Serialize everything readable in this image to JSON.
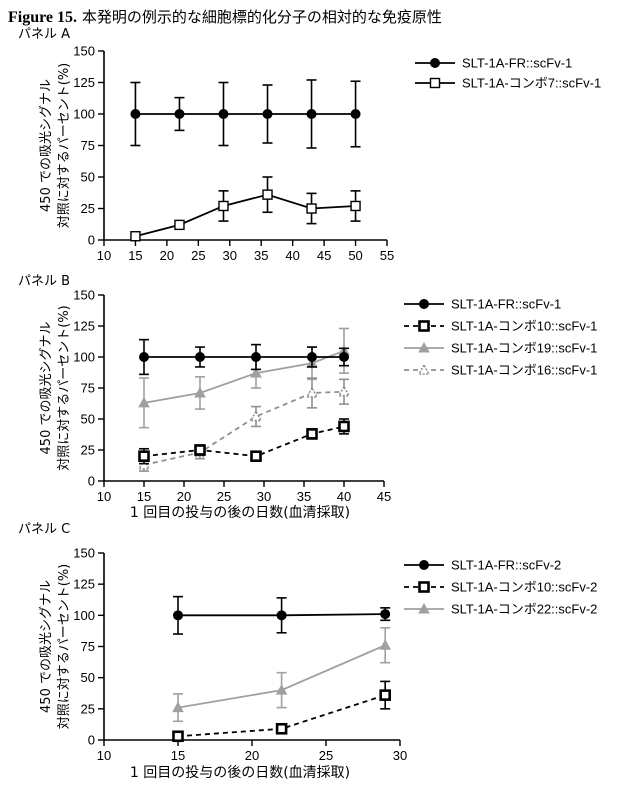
{
  "figure": {
    "number": "Figure 15.",
    "title": "本発明の例示的な細胞標的化分子の相対的な免疫原性"
  },
  "chart_data": [
    {
      "type": "line",
      "panel_label": "パネル A",
      "xlim": [
        10,
        55
      ],
      "xticks": [
        10,
        15,
        20,
        25,
        30,
        35,
        40,
        45,
        50,
        55
      ],
      "ylim": [
        0,
        150
      ],
      "yticks": [
        0,
        25,
        50,
        75,
        100,
        125,
        150
      ],
      "ylabel": [
        "450 での吸光シグナル",
        "対照に対するパーセント(%)"
      ],
      "xlabel": "",
      "grid": false,
      "legend_position": "right",
      "series": [
        {
          "name": "SLT-1A-FR::scFv-1",
          "marker": "circle-filled",
          "dash": "solid",
          "color": "#000000",
          "x": [
            15,
            22,
            29,
            36,
            43,
            50
          ],
          "y": [
            100,
            100,
            100,
            100,
            100,
            100
          ],
          "err": [
            25,
            13,
            25,
            23,
            27,
            26
          ]
        },
        {
          "name": "SLT-1A-コンボ7::scFv-1",
          "marker": "square-open",
          "dash": "solid",
          "color": "#000000",
          "x": [
            15,
            22,
            29,
            36,
            43,
            50
          ],
          "y": [
            3,
            12,
            27,
            36,
            25,
            27
          ],
          "err": [
            2,
            3,
            12,
            14,
            12,
            12
          ]
        }
      ]
    },
    {
      "type": "line",
      "panel_label": "パネル B",
      "xlim": [
        10,
        45
      ],
      "xticks": [
        10,
        15,
        20,
        25,
        30,
        35,
        40,
        45
      ],
      "ylim": [
        0,
        150
      ],
      "yticks": [
        0,
        25,
        50,
        75,
        100,
        125,
        150
      ],
      "ylabel": [
        "450 での吸光シグナル",
        "対照に対するパーセント(%)"
      ],
      "xlabel": "1 回目の投与の後の日数(血清採取)",
      "grid": false,
      "legend_position": "right",
      "series": [
        {
          "name": "SLT-1A-FR::scFv-1",
          "marker": "circle-filled",
          "dash": "solid",
          "color": "#000000",
          "x": [
            15,
            22,
            29,
            36,
            40
          ],
          "y": [
            100,
            100,
            100,
            100,
            100
          ],
          "err": [
            14,
            8,
            10,
            8,
            7
          ]
        },
        {
          "name": "SLT-1A-コンボ10::scFv-1",
          "marker": "square-open-bold",
          "dash": "dashed",
          "color": "#000000",
          "x": [
            15,
            22,
            29,
            36,
            40
          ],
          "y": [
            20,
            25,
            20,
            38,
            44
          ],
          "err": [
            6,
            4,
            0,
            4,
            6
          ]
        },
        {
          "name": "SLT-1A-コンボ19::scFv-1",
          "marker": "triangle-filled",
          "dash": "solid",
          "color": "#a0a0a0",
          "x": [
            15,
            22,
            29,
            36,
            40
          ],
          "y": [
            63,
            71,
            87,
            95,
            105
          ],
          "err": [
            20,
            13,
            12,
            13,
            18
          ]
        },
        {
          "name": "SLT-1A-コンボ16::scFv-1",
          "marker": "triangle-open",
          "dash": "dashed",
          "color": "#909090",
          "x": [
            15,
            22,
            29,
            36,
            40
          ],
          "y": [
            13,
            23,
            52,
            71,
            72
          ],
          "err": [
            5,
            5,
            8,
            12,
            10
          ]
        }
      ]
    },
    {
      "type": "line",
      "panel_label": "パネル C",
      "xlim": [
        10,
        30
      ],
      "xticks": [
        10,
        15,
        20,
        25,
        30
      ],
      "ylim": [
        0,
        150
      ],
      "yticks": [
        0,
        25,
        50,
        75,
        100,
        125,
        150
      ],
      "ylabel": [
        "450 での吸光シグナル",
        "対照に対するパーセント(%)"
      ],
      "xlabel": "1 回目の投与の後の日数(血清採取)",
      "grid": false,
      "legend_position": "right",
      "series": [
        {
          "name": "SLT-1A-FR::scFv-2",
          "marker": "circle-filled",
          "dash": "solid",
          "color": "#000000",
          "x": [
            15,
            22,
            29
          ],
          "y": [
            100,
            100,
            101
          ],
          "err": [
            15,
            14,
            5
          ]
        },
        {
          "name": "SLT-1A-コンボ10::scFv-2",
          "marker": "square-open-bold",
          "dash": "dashed",
          "color": "#000000",
          "x": [
            15,
            22,
            29
          ],
          "y": [
            3,
            9,
            36
          ],
          "err": [
            1,
            2,
            11
          ]
        },
        {
          "name": "SLT-1A-コンボ22::scFv-2",
          "marker": "triangle-filled",
          "dash": "solid",
          "color": "#a0a0a0",
          "x": [
            15,
            22,
            29
          ],
          "y": [
            26,
            40,
            76
          ],
          "err": [
            11,
            14,
            14
          ]
        }
      ]
    }
  ]
}
